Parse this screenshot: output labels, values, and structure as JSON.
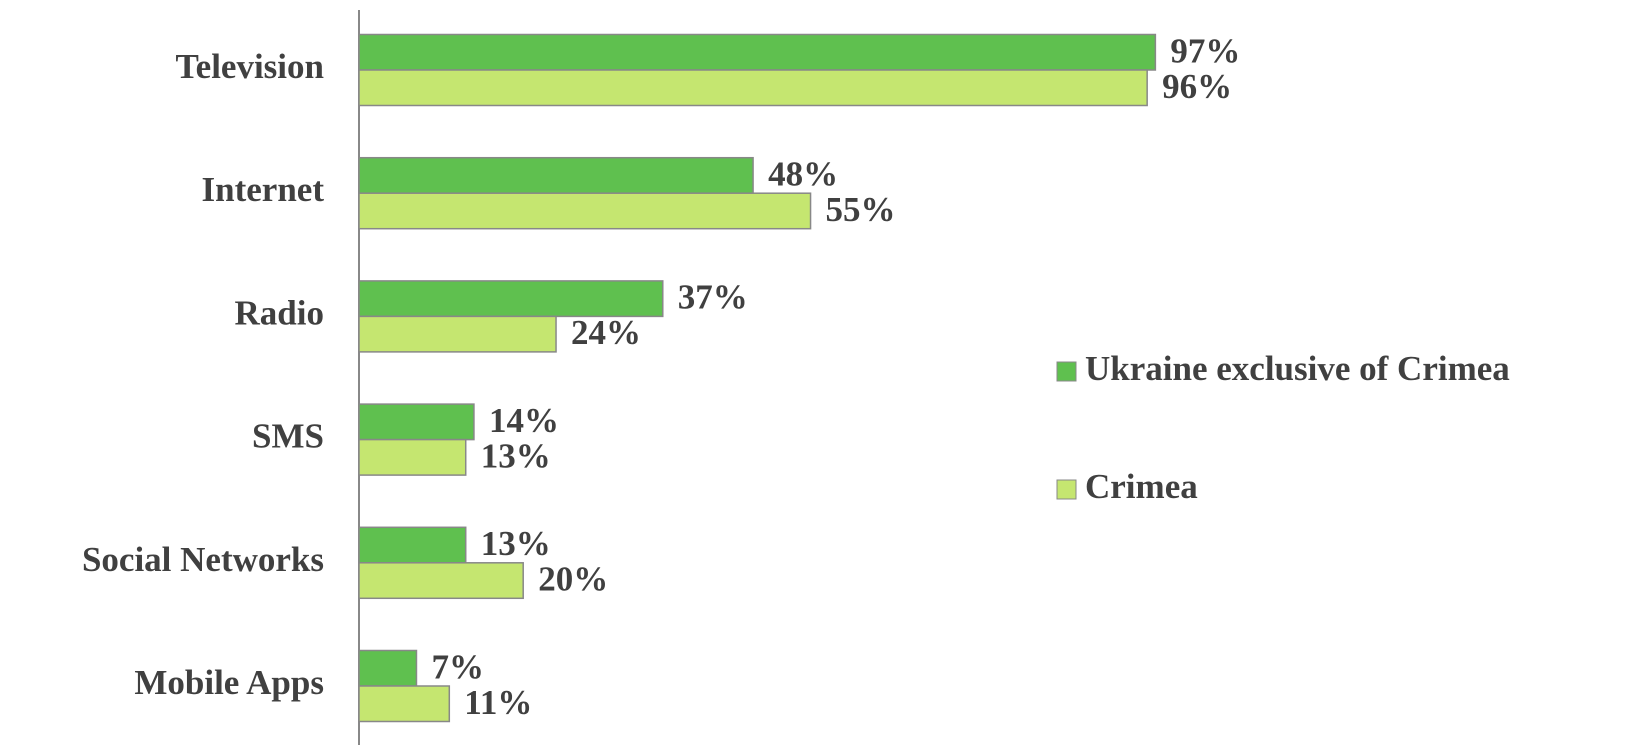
{
  "chart_data": {
    "type": "bar",
    "orientation": "horizontal",
    "categories": [
      "Television",
      "Internet",
      "Radio",
      "SMS",
      "Social Networks",
      "Mobile Apps"
    ],
    "series": [
      {
        "name": "Ukraine exclusive of Crimea",
        "color": "#5fc04f",
        "values": [
          97,
          48,
          37,
          14,
          13,
          7
        ],
        "value_labels": [
          "97%",
          "48%",
          "37%",
          "14%",
          "13%",
          "7%"
        ]
      },
      {
        "name": "Crimea",
        "color": "#c5e670",
        "values": [
          96,
          55,
          24,
          13,
          20,
          11
        ],
        "value_labels": [
          "96%",
          "55%",
          "24%",
          "13%",
          "20%",
          "11%"
        ]
      }
    ],
    "legend": "right"
  }
}
